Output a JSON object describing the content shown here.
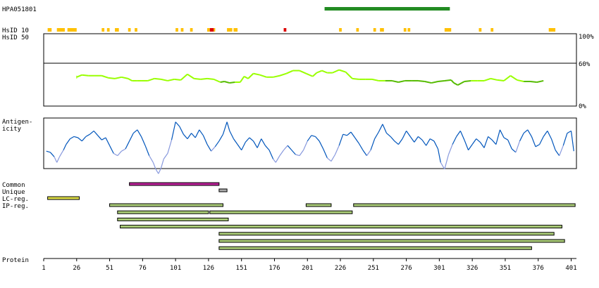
{
  "colors": {
    "antibody_bar": "#228b22",
    "hsid_yellow": "#ffc000",
    "hsid_red": "#dd0000",
    "identity_light": "#99ff00",
    "identity_dark": "#55bb00",
    "antigen_dark": "#0055bb",
    "antigen_light": "#8899dd",
    "common": "#bb2299",
    "unique": "#aaaaaa",
    "lc_reg": "#dddd44",
    "ip_reg": "#aacc77"
  },
  "labels": {
    "antibody": "HPA051801",
    "hsid10": "HsID 10",
    "hsid50": "HsID 50",
    "identity_max": "100%",
    "identity_mid": "60%",
    "identity_min": "0%",
    "antigenicity_1": "Antigen-",
    "antigenicity_2": "icity",
    "common": "Common",
    "unique": "Unique",
    "lc_reg": "LC-reg.",
    "ip_reg": "IP-reg.",
    "protein": "Protein"
  },
  "chart_data": {
    "type": "protein-feature-map",
    "x_axis": {
      "label": "Protein",
      "range": [
        1,
        405
      ],
      "ticks": [
        1,
        26,
        51,
        76,
        101,
        126,
        151,
        176,
        201,
        226,
        251,
        276,
        301,
        326,
        351,
        376,
        401
      ]
    },
    "antibody_region": {
      "name": "HPA051801",
      "start": 214,
      "end": 309
    },
    "hsid10": [
      {
        "start": 4,
        "end": 6,
        "level": "low"
      },
      {
        "start": 11,
        "end": 16,
        "level": "low"
      },
      {
        "start": 19,
        "end": 25,
        "level": "low"
      },
      {
        "start": 45,
        "end": 46,
        "level": "low"
      },
      {
        "start": 49,
        "end": 50,
        "level": "low"
      },
      {
        "start": 55,
        "end": 57,
        "level": "low"
      },
      {
        "start": 65,
        "end": 66,
        "level": "low"
      },
      {
        "start": 70,
        "end": 71,
        "level": "low"
      },
      {
        "start": 101,
        "end": 102,
        "level": "low"
      },
      {
        "start": 105,
        "end": 106,
        "level": "low"
      },
      {
        "start": 112,
        "end": 113,
        "level": "low"
      },
      {
        "start": 125,
        "end": 126,
        "level": "low"
      },
      {
        "start": 127,
        "end": 129,
        "level": "high"
      },
      {
        "start": 130,
        "end": 130,
        "level": "low"
      },
      {
        "start": 140,
        "end": 143,
        "level": "low"
      },
      {
        "start": 145,
        "end": 147,
        "level": "low"
      },
      {
        "start": 183,
        "end": 184,
        "level": "high"
      },
      {
        "start": 225,
        "end": 226,
        "level": "low"
      },
      {
        "start": 238,
        "end": 239,
        "level": "low"
      },
      {
        "start": 251,
        "end": 252,
        "level": "low"
      },
      {
        "start": 256,
        "end": 258,
        "level": "low"
      },
      {
        "start": 274,
        "end": 275,
        "level": "low"
      },
      {
        "start": 277,
        "end": 278,
        "level": "low"
      },
      {
        "start": 305,
        "end": 309,
        "level": "low"
      },
      {
        "start": 331,
        "end": 332,
        "level": "low"
      },
      {
        "start": 340,
        "end": 341,
        "level": "low"
      },
      {
        "start": 384,
        "end": 388,
        "level": "low"
      }
    ],
    "identity": {
      "y_axis": {
        "ticks": [
          "0%",
          "60%",
          "100%"
        ],
        "range": [
          0,
          100
        ]
      },
      "x": [
        26,
        30,
        35,
        40,
        45,
        50,
        55,
        60,
        65,
        68,
        72,
        75,
        80,
        85,
        90,
        95,
        100,
        105,
        110,
        115,
        120,
        125,
        130,
        135,
        138,
        142,
        146,
        150,
        153,
        156,
        160,
        165,
        170,
        175,
        180,
        185,
        190,
        195,
        200,
        205,
        208,
        212,
        216,
        220,
        225,
        230,
        235,
        240,
        245,
        250,
        255,
        260,
        265,
        270,
        275,
        280,
        285,
        290,
        295,
        300,
        305,
        310,
        312,
        315,
        320,
        325,
        330,
        335,
        340,
        345,
        350,
        355,
        360,
        365,
        370,
        375,
        380
      ],
      "values": [
        40,
        43,
        42,
        42,
        42,
        39,
        38,
        40,
        38,
        35,
        35,
        35,
        35,
        38,
        37,
        35,
        37,
        36,
        44,
        38,
        37,
        38,
        37,
        33,
        34,
        32,
        33,
        33,
        41,
        38,
        45,
        43,
        40,
        40,
        42,
        45,
        49,
        49,
        45,
        41,
        46,
        49,
        46,
        46,
        50,
        47,
        38,
        37,
        37,
        37,
        35,
        35,
        35,
        33,
        35,
        35,
        35,
        34,
        32,
        34,
        35,
        36,
        32,
        29,
        34,
        35,
        35,
        35,
        38,
        36,
        35,
        42,
        36,
        34,
        34,
        33,
        35
      ],
      "identity_level": [
        "high",
        "high",
        "high",
        "high",
        "high",
        "high",
        "high",
        "high",
        "high",
        "high",
        "high",
        "high",
        "high",
        "high",
        "high",
        "high",
        "high",
        "high",
        "high",
        "high",
        "high",
        "high",
        "high",
        "low",
        "low",
        "low",
        "high",
        "high",
        "high",
        "high",
        "high",
        "high",
        "high",
        "high",
        "high",
        "high",
        "high",
        "high",
        "high",
        "high",
        "high",
        "high",
        "high",
        "high",
        "high",
        "high",
        "high",
        "high",
        "high",
        "high",
        "high",
        "low",
        "low",
        "low",
        "low",
        "low",
        "low",
        "low",
        "low",
        "low",
        "low",
        "low",
        "low",
        "low",
        "low",
        "high",
        "high",
        "high",
        "high",
        "high",
        "high",
        "high",
        "high",
        "low",
        "low",
        "low",
        "low"
      ]
    },
    "antigenicity": {
      "x": [
        3,
        6,
        9,
        11,
        13,
        16,
        18,
        21,
        24,
        27,
        30,
        33,
        36,
        39,
        42,
        45,
        48,
        51,
        54,
        57,
        60,
        63,
        66,
        69,
        72,
        75,
        78,
        81,
        84,
        86,
        88,
        90,
        92,
        95,
        98,
        101,
        104,
        107,
        110,
        113,
        116,
        119,
        122,
        125,
        128,
        131,
        134,
        137,
        140,
        142,
        145,
        148,
        151,
        154,
        157,
        160,
        163,
        166,
        169,
        172,
        175,
        177,
        180,
        183,
        186,
        189,
        192,
        195,
        198,
        201,
        204,
        207,
        210,
        213,
        216,
        219,
        222,
        225,
        228,
        231,
        234,
        237,
        240,
        243,
        246,
        249,
        252,
        255,
        258,
        261,
        264,
        267,
        270,
        273,
        276,
        279,
        282,
        285,
        288,
        291,
        294,
        297,
        300,
        302,
        305,
        308,
        311,
        314,
        317,
        320,
        323,
        326,
        329,
        332,
        335,
        338,
        341,
        344,
        347,
        350,
        353,
        356,
        359,
        362,
        365,
        368,
        371,
        374,
        377,
        380,
        383,
        386,
        389,
        392,
        395,
        398,
        401,
        403
      ],
      "values": [
        -0.35,
        -0.4,
        -0.6,
        -0.85,
        -0.6,
        -0.3,
        -0.05,
        0.2,
        0.3,
        0.25,
        0.1,
        0.3,
        0.4,
        0.55,
        0.35,
        0.15,
        0.25,
        -0.1,
        -0.45,
        -0.55,
        -0.35,
        -0.25,
        0.1,
        0.45,
        0.6,
        0.3,
        -0.1,
        -0.55,
        -0.85,
        -1.15,
        -1.35,
        -1.1,
        -0.7,
        -0.45,
        0.15,
        0.95,
        0.75,
        0.4,
        0.2,
        0.45,
        0.25,
        0.6,
        0.35,
        -0.05,
        -0.35,
        -0.15,
        0.1,
        0.4,
        0.95,
        0.55,
        0.2,
        -0.05,
        -0.3,
        0.05,
        0.25,
        0.1,
        -0.2,
        0.2,
        -0.1,
        -0.3,
        -0.7,
        -0.85,
        -0.55,
        -0.3,
        -0.1,
        -0.3,
        -0.5,
        -0.55,
        -0.3,
        0.1,
        0.35,
        0.3,
        0.1,
        -0.25,
        -0.65,
        -0.8,
        -0.5,
        -0.1,
        0.4,
        0.35,
        0.5,
        0.25,
        0.0,
        -0.3,
        -0.55,
        -0.3,
        0.2,
        0.5,
        0.85,
        0.45,
        0.3,
        0.1,
        -0.05,
        0.2,
        0.55,
        0.3,
        0.05,
        0.3,
        0.15,
        -0.1,
        0.2,
        0.1,
        -0.25,
        -0.85,
        -1.15,
        -0.5,
        -0.05,
        0.3,
        0.55,
        0.15,
        -0.3,
        -0.05,
        0.2,
        0.05,
        -0.2,
        0.3,
        0.15,
        -0.05,
        0.6,
        0.25,
        0.15,
        -0.25,
        -0.4,
        0.1,
        0.45,
        0.6,
        0.3,
        -0.15,
        -0.05,
        0.3,
        0.55,
        0.2,
        -0.3,
        -0.55,
        -0.1,
        0.45,
        0.55,
        -0.35
      ],
      "lightness": [
        "dark",
        "dark",
        "light",
        "light",
        "light",
        "dark",
        "dark",
        "dark",
        "dark",
        "dark",
        "dark",
        "dark",
        "dark",
        "dark",
        "dark",
        "dark",
        "dark",
        "dark",
        "light",
        "light",
        "light",
        "dark",
        "dark",
        "dark",
        "dark",
        "dark",
        "dark",
        "light",
        "light",
        "light",
        "light",
        "light",
        "light",
        "light",
        "dark",
        "dark",
        "dark",
        "dark",
        "dark",
        "dark",
        "dark",
        "dark",
        "dark",
        "dark",
        "light",
        "dark",
        "dark",
        "dark",
        "dark",
        "dark",
        "dark",
        "dark",
        "dark",
        "dark",
        "dark",
        "dark",
        "dark",
        "dark",
        "dark",
        "dark",
        "light",
        "light",
        "light",
        "light",
        "dark",
        "dark",
        "light",
        "light",
        "light",
        "dark",
        "dark",
        "dark",
        "dark",
        "dark",
        "light",
        "light",
        "light",
        "dark",
        "dark",
        "dark",
        "dark",
        "dark",
        "dark",
        "dark",
        "light",
        "dark",
        "dark",
        "dark",
        "dark",
        "dark",
        "dark",
        "dark",
        "dark",
        "dark",
        "dark",
        "dark",
        "dark",
        "dark",
        "dark",
        "dark",
        "dark",
        "dark",
        "dark",
        "light",
        "light",
        "light",
        "dark",
        "dark",
        "dark",
        "dark",
        "dark",
        "dark",
        "dark",
        "dark",
        "dark",
        "dark",
        "dark",
        "dark",
        "dark",
        "dark",
        "dark",
        "dark",
        "light",
        "dark",
        "dark",
        "dark",
        "dark",
        "dark",
        "dark",
        "dark",
        "dark",
        "dark",
        "dark",
        "light",
        "dark",
        "dark",
        "dark",
        "dark"
      ]
    },
    "common": [
      {
        "start": 66,
        "end": 134
      }
    ],
    "unique": [
      {
        "start": 134,
        "end": 140
      }
    ],
    "lc_reg": [
      {
        "start": 4,
        "end": 28
      }
    ],
    "ip_reg": [
      [
        {
          "start": 51,
          "end": 137
        },
        {
          "start": 200,
          "end": 219
        },
        {
          "start": 236,
          "end": 404
        }
      ],
      [
        {
          "start": 57,
          "end": 126
        },
        {
          "start": 127,
          "end": 235
        }
      ],
      [
        {
          "start": 57,
          "end": 141
        }
      ],
      [
        {
          "start": 59,
          "end": 394
        }
      ],
      [
        {
          "start": 134,
          "end": 388
        }
      ],
      [
        {
          "start": 134,
          "end": 396
        }
      ],
      [
        {
          "start": 134,
          "end": 371
        }
      ]
    ]
  }
}
